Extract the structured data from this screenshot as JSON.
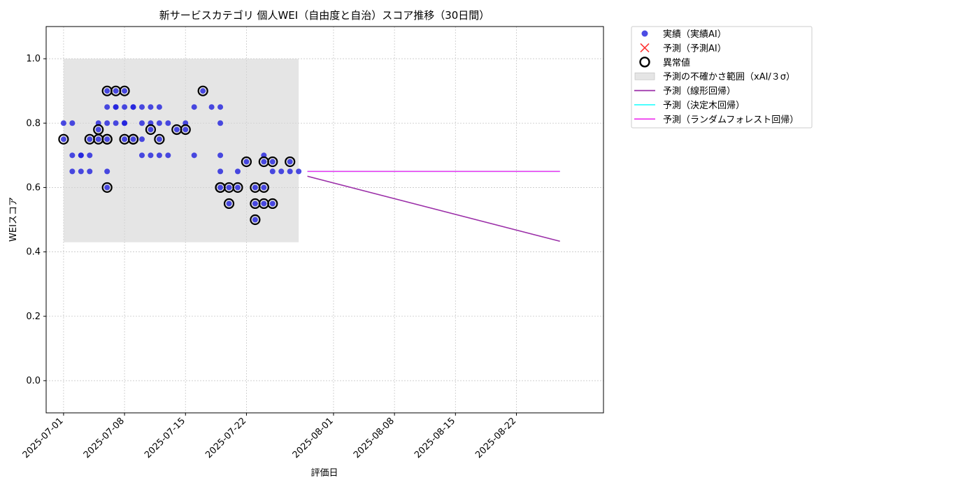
{
  "chart_data": {
    "type": "scatter",
    "title": "新サービスカテゴリ 個人WEI（自由度と自治）スコア推移（30日間）",
    "xlabel": "評価日",
    "ylabel": "WEIスコア",
    "xlim": [
      "2025-06-29",
      "2025-09-01"
    ],
    "ylim": [
      -0.1,
      1.1
    ],
    "x_ticks": [
      "2025-07-01",
      "2025-07-08",
      "2025-07-15",
      "2025-07-22",
      "2025-08-01",
      "2025-08-08",
      "2025-08-15",
      "2025-08-22"
    ],
    "y_ticks": [
      "0.0",
      "0.2",
      "0.4",
      "0.6",
      "0.8",
      "1.0"
    ],
    "grid": true,
    "legend_position": "outside-top-right",
    "uncertainty_band": {
      "x_start": "2025-07-01",
      "x_end": "2025-07-28",
      "y_low": 0.43,
      "y_high": 1.0
    },
    "series": [
      {
        "name": "実績（実績AI）",
        "kind": "scatter",
        "color": "#1f1fdd",
        "points": [
          [
            "2025-07-01",
            0.75
          ],
          [
            "2025-07-01",
            0.8
          ],
          [
            "2025-07-02",
            0.7
          ],
          [
            "2025-07-02",
            0.8
          ],
          [
            "2025-07-02",
            0.65
          ],
          [
            "2025-07-03",
            0.7
          ],
          [
            "2025-07-03",
            0.65
          ],
          [
            "2025-07-03",
            0.7
          ],
          [
            "2025-07-04",
            0.65
          ],
          [
            "2025-07-04",
            0.7
          ],
          [
            "2025-07-04",
            0.75
          ],
          [
            "2025-07-05",
            0.75
          ],
          [
            "2025-07-05",
            0.8
          ],
          [
            "2025-07-05",
            0.78
          ],
          [
            "2025-07-06",
            0.6
          ],
          [
            "2025-07-06",
            0.65
          ],
          [
            "2025-07-06",
            0.75
          ],
          [
            "2025-07-06",
            0.8
          ],
          [
            "2025-07-06",
            0.85
          ],
          [
            "2025-07-06",
            0.9
          ],
          [
            "2025-07-07",
            0.85
          ],
          [
            "2025-07-07",
            0.9
          ],
          [
            "2025-07-07",
            0.8
          ],
          [
            "2025-07-07",
            0.85
          ],
          [
            "2025-07-08",
            0.9
          ],
          [
            "2025-07-08",
            0.85
          ],
          [
            "2025-07-08",
            0.8
          ],
          [
            "2025-07-08",
            0.75
          ],
          [
            "2025-07-08",
            0.8
          ],
          [
            "2025-07-09",
            0.85
          ],
          [
            "2025-07-09",
            0.75
          ],
          [
            "2025-07-09",
            0.85
          ],
          [
            "2025-07-10",
            0.75
          ],
          [
            "2025-07-10",
            0.8
          ],
          [
            "2025-07-10",
            0.7
          ],
          [
            "2025-07-10",
            0.85
          ],
          [
            "2025-07-11",
            0.78
          ],
          [
            "2025-07-11",
            0.8
          ],
          [
            "2025-07-11",
            0.85
          ],
          [
            "2025-07-11",
            0.7
          ],
          [
            "2025-07-12",
            0.85
          ],
          [
            "2025-07-12",
            0.8
          ],
          [
            "2025-07-12",
            0.7
          ],
          [
            "2025-07-12",
            0.75
          ],
          [
            "2025-07-13",
            0.8
          ],
          [
            "2025-07-13",
            0.7
          ],
          [
            "2025-07-14",
            0.78
          ],
          [
            "2025-07-15",
            0.78
          ],
          [
            "2025-07-15",
            0.8
          ],
          [
            "2025-07-16",
            0.85
          ],
          [
            "2025-07-16",
            0.7
          ],
          [
            "2025-07-17",
            0.9
          ],
          [
            "2025-07-18",
            0.85
          ],
          [
            "2025-07-19",
            0.8
          ],
          [
            "2025-07-19",
            0.85
          ],
          [
            "2025-07-19",
            0.7
          ],
          [
            "2025-07-19",
            0.65
          ],
          [
            "2025-07-19",
            0.6
          ],
          [
            "2025-07-20",
            0.6
          ],
          [
            "2025-07-20",
            0.55
          ],
          [
            "2025-07-21",
            0.65
          ],
          [
            "2025-07-21",
            0.6
          ],
          [
            "2025-07-22",
            0.68
          ],
          [
            "2025-07-23",
            0.6
          ],
          [
            "2025-07-23",
            0.55
          ],
          [
            "2025-07-23",
            0.5
          ],
          [
            "2025-07-24",
            0.6
          ],
          [
            "2025-07-24",
            0.55
          ],
          [
            "2025-07-24",
            0.7
          ],
          [
            "2025-07-24",
            0.68
          ],
          [
            "2025-07-25",
            0.65
          ],
          [
            "2025-07-25",
            0.55
          ],
          [
            "2025-07-25",
            0.68
          ],
          [
            "2025-07-26",
            0.65
          ],
          [
            "2025-07-27",
            0.65
          ],
          [
            "2025-07-27",
            0.68
          ],
          [
            "2025-07-28",
            0.65
          ]
        ]
      },
      {
        "name": "予測（予測AI）",
        "kind": "x-marker",
        "color": "#ff3333",
        "points": []
      },
      {
        "name": "異常値",
        "kind": "ring",
        "color": "#000000",
        "points": [
          [
            "2025-07-01",
            0.75
          ],
          [
            "2025-07-04",
            0.75
          ],
          [
            "2025-07-05",
            0.75
          ],
          [
            "2025-07-05",
            0.78
          ],
          [
            "2025-07-06",
            0.6
          ],
          [
            "2025-07-06",
            0.75
          ],
          [
            "2025-07-06",
            0.75
          ],
          [
            "2025-07-06",
            0.9
          ],
          [
            "2025-07-07",
            0.9
          ],
          [
            "2025-07-08",
            0.9
          ],
          [
            "2025-07-08",
            0.75
          ],
          [
            "2025-07-09",
            0.75
          ],
          [
            "2025-07-09",
            0.75
          ],
          [
            "2025-07-11",
            0.78
          ],
          [
            "2025-07-12",
            0.75
          ],
          [
            "2025-07-14",
            0.78
          ],
          [
            "2025-07-15",
            0.78
          ],
          [
            "2025-07-17",
            0.9
          ],
          [
            "2025-07-19",
            0.6
          ],
          [
            "2025-07-19",
            0.6
          ],
          [
            "2025-07-20",
            0.6
          ],
          [
            "2025-07-20",
            0.55
          ],
          [
            "2025-07-21",
            0.6
          ],
          [
            "2025-07-22",
            0.68
          ],
          [
            "2025-07-23",
            0.6
          ],
          [
            "2025-07-23",
            0.55
          ],
          [
            "2025-07-23",
            0.5
          ],
          [
            "2025-07-24",
            0.6
          ],
          [
            "2025-07-24",
            0.55
          ],
          [
            "2025-07-24",
            0.68
          ],
          [
            "2025-07-25",
            0.68
          ],
          [
            "2025-07-25",
            0.55
          ],
          [
            "2025-07-27",
            0.68
          ]
        ]
      },
      {
        "name": "予測の不確かさ範囲（xAI/３σ）",
        "kind": "band",
        "color": "#d3d3d3"
      },
      {
        "name": "予測（線形回帰）",
        "kind": "line",
        "color": "#9b2fa8",
        "points": [
          [
            "2025-07-29",
            0.635
          ],
          [
            "2025-08-27",
            0.433
          ]
        ]
      },
      {
        "name": "予測（決定木回帰）",
        "kind": "line",
        "color": "#33ffff",
        "points": [
          [
            "2025-07-29",
            0.65
          ],
          [
            "2025-08-27",
            0.65
          ]
        ]
      },
      {
        "name": "予測（ランダムフォレスト回帰）",
        "kind": "line",
        "color": "#ee33ee",
        "points": [
          [
            "2025-07-29",
            0.65
          ],
          [
            "2025-08-27",
            0.65
          ]
        ]
      }
    ]
  }
}
